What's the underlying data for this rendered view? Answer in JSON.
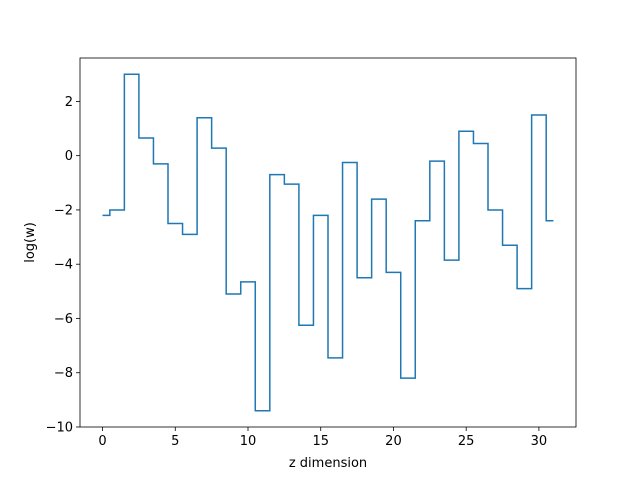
{
  "chart_data": {
    "type": "line",
    "drawstyle": "steps-mid",
    "title": "",
    "xlabel": "z dimension",
    "ylabel": "log(w)",
    "xlim": [
      -1.55,
      32.55
    ],
    "ylim": [
      -10.0,
      3.6
    ],
    "xticks": [
      0,
      5,
      10,
      15,
      20,
      25,
      30
    ],
    "yticks": [
      -10,
      -8,
      -6,
      -4,
      -2,
      0,
      2
    ],
    "grid": false,
    "legend": "none",
    "line_color": "#1f77b4",
    "series": [
      {
        "x": [
          0,
          1,
          2,
          3,
          4,
          5,
          6,
          7,
          8,
          9,
          10,
          11,
          12,
          13,
          14,
          15,
          16,
          17,
          18,
          19,
          20,
          21,
          22,
          23,
          24,
          25,
          26,
          27,
          28,
          29,
          30,
          31
        ],
        "y": [
          -2.2,
          -2.0,
          3.0,
          0.65,
          -0.3,
          -2.5,
          -2.9,
          1.4,
          0.28,
          -5.1,
          -4.65,
          -9.4,
          -0.7,
          -1.05,
          -6.25,
          -2.2,
          -7.45,
          -0.25,
          -4.5,
          -1.6,
          -4.3,
          -8.2,
          -2.4,
          -0.2,
          -3.85,
          0.9,
          0.45,
          -2.0,
          -3.3,
          -4.9,
          1.5,
          -2.4
        ]
      }
    ]
  }
}
